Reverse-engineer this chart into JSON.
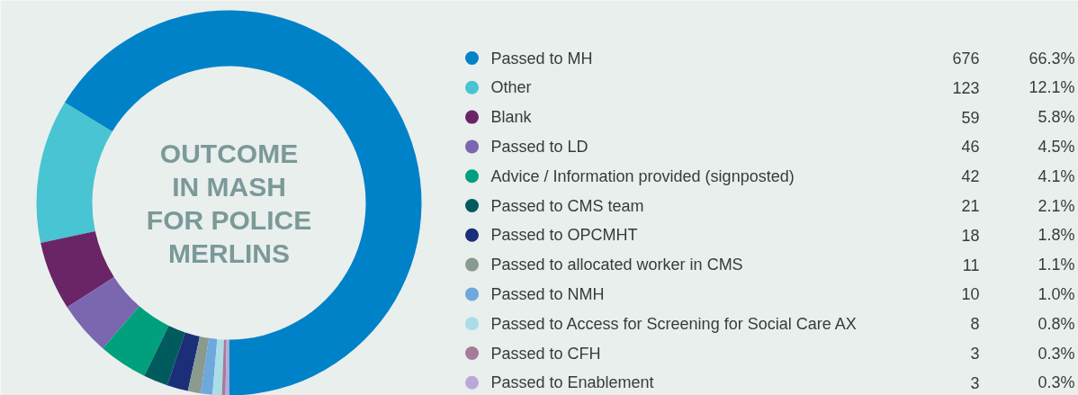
{
  "chart_data": {
    "type": "donut",
    "title": "OUTCOME\nIN MASH\nFOR POLICE\nMERLINS",
    "categories": [
      "Passed to MH",
      "Other",
      "Blank",
      "Passed to LD",
      "Advice / Information provided (signposted)",
      "Passed to CMS team",
      "Passed to OPCMHT",
      "Passed to allocated worker in CMS",
      "Passed to NMH",
      "Passed to Access for Screening for Social Care AX",
      "Passed to CFH",
      "Passed to Enablement"
    ],
    "values": [
      676,
      123,
      59,
      46,
      42,
      21,
      18,
      11,
      10,
      8,
      3,
      3
    ],
    "annotations": [
      "66.3%",
      "12.1%",
      "5.8%",
      "4.5%",
      "4.1%",
      "2.1%",
      "1.8%",
      "1.1%",
      "1.0%",
      "0.8%",
      "0.3%",
      "0.3%"
    ],
    "colors": [
      "#0082c8",
      "#48c4d2",
      "#6a2566",
      "#7b67b0",
      "#00a07c",
      "#005b5e",
      "#1b2e78",
      "#8b9a8f",
      "#6ea8dc",
      "#a9dde8",
      "#a87a9a",
      "#b9a9d9"
    ],
    "data_labels": true,
    "legend": "right"
  }
}
